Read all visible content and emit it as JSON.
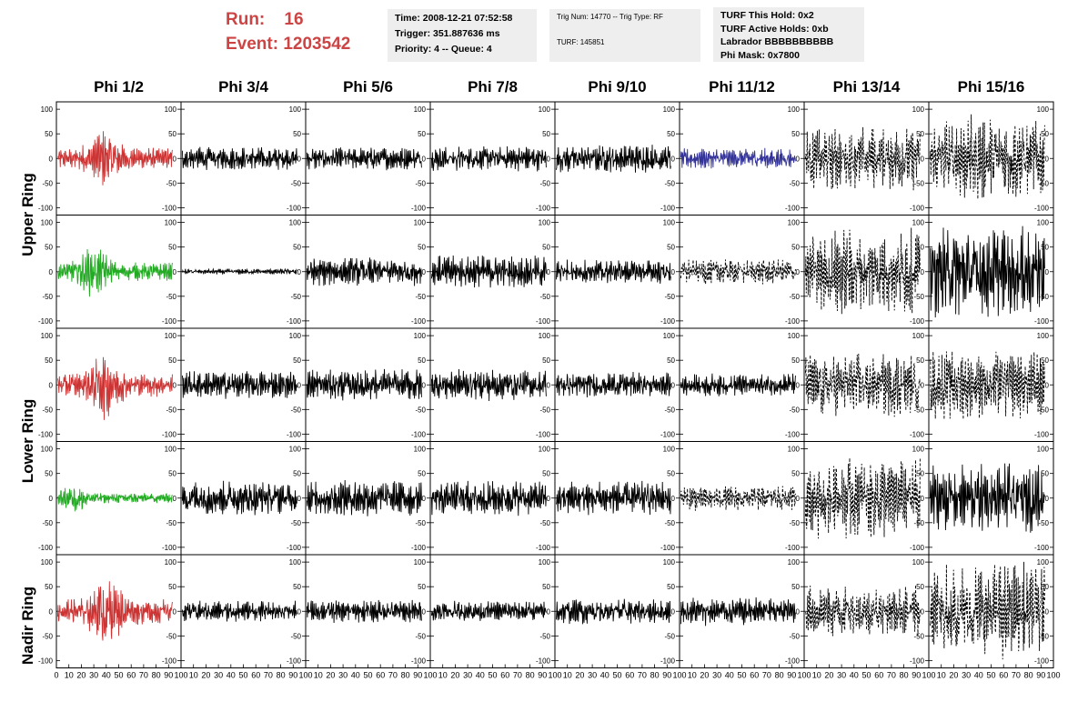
{
  "header": {
    "run_label": "Run:",
    "run_value": "16",
    "event_label": "Event:",
    "event_value": "1203542",
    "time_info": [
      "Time: 2008-12-21 07:52:58",
      "Trigger: 351.887636 ms",
      "Priority: 4 -- Queue: 4"
    ],
    "trig_info": [
      "Trig Num: 14770 -- Trig Type: RF",
      "",
      "TURF: 145851"
    ],
    "turf_info": [
      "TURF This Hold: 0x2",
      "TURF Active Holds: 0xb",
      "Labrador BBBBBBBBBB",
      "Phi Mask: 0x7800"
    ]
  },
  "colors": {
    "red": "#cc3333",
    "green": "#22aa22",
    "blue": "#333399",
    "black": "#000000",
    "header_red": "#cc4444",
    "info_bg": "#eeeeee"
  },
  "chart_data": {
    "type": "line",
    "columns": [
      "Phi 1/2",
      "Phi 3/4",
      "Phi 5/6",
      "Phi 7/8",
      "Phi 9/10",
      "Phi 11/12",
      "Phi 13/14",
      "Phi 15/16"
    ],
    "row_groups": [
      "Upper Ring",
      "Lower Ring",
      "Nadir Ring"
    ],
    "xlim": [
      0,
      100
    ],
    "ylim": [
      -115,
      115
    ],
    "x_ticks": [
      0,
      10,
      20,
      30,
      40,
      50,
      60,
      70,
      80,
      90,
      100
    ],
    "y_ticks": [
      100,
      50,
      0,
      -50,
      -100
    ],
    "x_tick_labels": [
      "0",
      "10",
      "20",
      "30",
      "40",
      "50",
      "60",
      "70",
      "80",
      "90",
      "100"
    ],
    "y_tick_labels": [
      "100",
      "50",
      "0",
      "-50",
      "-100"
    ],
    "panels": [
      {
        "row": 0,
        "col": 0,
        "color": "red",
        "style": "solid",
        "amp": 55,
        "burst": 38
      },
      {
        "row": 0,
        "col": 1,
        "color": "black",
        "style": "solid",
        "amp": 20,
        "burst": 0
      },
      {
        "row": 0,
        "col": 2,
        "color": "black",
        "style": "solid",
        "amp": 20,
        "burst": 0
      },
      {
        "row": 0,
        "col": 3,
        "color": "black",
        "style": "solid",
        "amp": 22,
        "burst": 0
      },
      {
        "row": 0,
        "col": 4,
        "color": "black",
        "style": "solid",
        "amp": 25,
        "burst": 0
      },
      {
        "row": 0,
        "col": 5,
        "color": "blue",
        "style": "solid",
        "amp": 18,
        "burst": 0
      },
      {
        "row": 0,
        "col": 6,
        "color": "black",
        "style": "dashed",
        "amp": 55,
        "burst": 0
      },
      {
        "row": 0,
        "col": 7,
        "color": "black",
        "style": "dashed",
        "amp": 75,
        "burst": 0
      },
      {
        "row": 1,
        "col": 0,
        "color": "green",
        "style": "solid",
        "amp": 45,
        "burst": 30
      },
      {
        "row": 1,
        "col": 1,
        "color": "black",
        "style": "solid",
        "amp": 5,
        "burst": 0
      },
      {
        "row": 1,
        "col": 2,
        "color": "black",
        "style": "solid",
        "amp": 25,
        "burst": 0
      },
      {
        "row": 1,
        "col": 3,
        "color": "black",
        "style": "solid",
        "amp": 28,
        "burst": 0
      },
      {
        "row": 1,
        "col": 4,
        "color": "black",
        "style": "solid",
        "amp": 22,
        "burst": 0
      },
      {
        "row": 1,
        "col": 5,
        "color": "black",
        "style": "dashed",
        "amp": 22,
        "burst": 0
      },
      {
        "row": 1,
        "col": 6,
        "color": "black",
        "style": "dashed",
        "amp": 75,
        "burst": 0
      },
      {
        "row": 1,
        "col": 7,
        "color": "black",
        "style": "solid",
        "amp": 80,
        "burst": 0
      },
      {
        "row": 2,
        "col": 0,
        "color": "red",
        "style": "solid",
        "amp": 60,
        "burst": 38
      },
      {
        "row": 2,
        "col": 1,
        "color": "black",
        "style": "solid",
        "amp": 25,
        "burst": 0
      },
      {
        "row": 2,
        "col": 2,
        "color": "black",
        "style": "solid",
        "amp": 28,
        "burst": 0
      },
      {
        "row": 2,
        "col": 3,
        "color": "black",
        "style": "solid",
        "amp": 28,
        "burst": 0
      },
      {
        "row": 2,
        "col": 4,
        "color": "black",
        "style": "solid",
        "amp": 22,
        "burst": 0
      },
      {
        "row": 2,
        "col": 5,
        "color": "black",
        "style": "solid",
        "amp": 20,
        "burst": 0
      },
      {
        "row": 2,
        "col": 6,
        "color": "black",
        "style": "dashed",
        "amp": 55,
        "burst": 0
      },
      {
        "row": 2,
        "col": 7,
        "color": "black",
        "style": "dashed",
        "amp": 60,
        "burst": 0
      },
      {
        "row": 3,
        "col": 0,
        "color": "green",
        "style": "solid",
        "amp": 25,
        "burst": 15
      },
      {
        "row": 3,
        "col": 1,
        "color": "black",
        "style": "solid",
        "amp": 30,
        "burst": 0
      },
      {
        "row": 3,
        "col": 2,
        "color": "black",
        "style": "solid",
        "amp": 32,
        "burst": 0
      },
      {
        "row": 3,
        "col": 3,
        "color": "black",
        "style": "solid",
        "amp": 30,
        "burst": 0
      },
      {
        "row": 3,
        "col": 4,
        "color": "black",
        "style": "solid",
        "amp": 30,
        "burst": 0
      },
      {
        "row": 3,
        "col": 5,
        "color": "black",
        "style": "dashed",
        "amp": 22,
        "burst": 0
      },
      {
        "row": 3,
        "col": 6,
        "color": "black",
        "style": "dashed",
        "amp": 70,
        "burst": 0
      },
      {
        "row": 3,
        "col": 7,
        "color": "black",
        "style": "solid",
        "amp": 60,
        "burst": 0
      },
      {
        "row": 4,
        "col": 0,
        "color": "red",
        "style": "solid",
        "amp": 65,
        "burst": 40
      },
      {
        "row": 4,
        "col": 1,
        "color": "black",
        "style": "solid",
        "amp": 18,
        "burst": 0
      },
      {
        "row": 4,
        "col": 2,
        "color": "black",
        "style": "solid",
        "amp": 20,
        "burst": 0
      },
      {
        "row": 4,
        "col": 3,
        "color": "black",
        "style": "solid",
        "amp": 18,
        "burst": 0
      },
      {
        "row": 4,
        "col": 4,
        "color": "black",
        "style": "solid",
        "amp": 22,
        "burst": 0
      },
      {
        "row": 4,
        "col": 5,
        "color": "black",
        "style": "solid",
        "amp": 25,
        "burst": 0
      },
      {
        "row": 4,
        "col": 6,
        "color": "black",
        "style": "dashed",
        "amp": 45,
        "burst": 0
      },
      {
        "row": 4,
        "col": 7,
        "color": "black",
        "style": "dashed",
        "amp": 85,
        "burst": 0
      }
    ]
  }
}
